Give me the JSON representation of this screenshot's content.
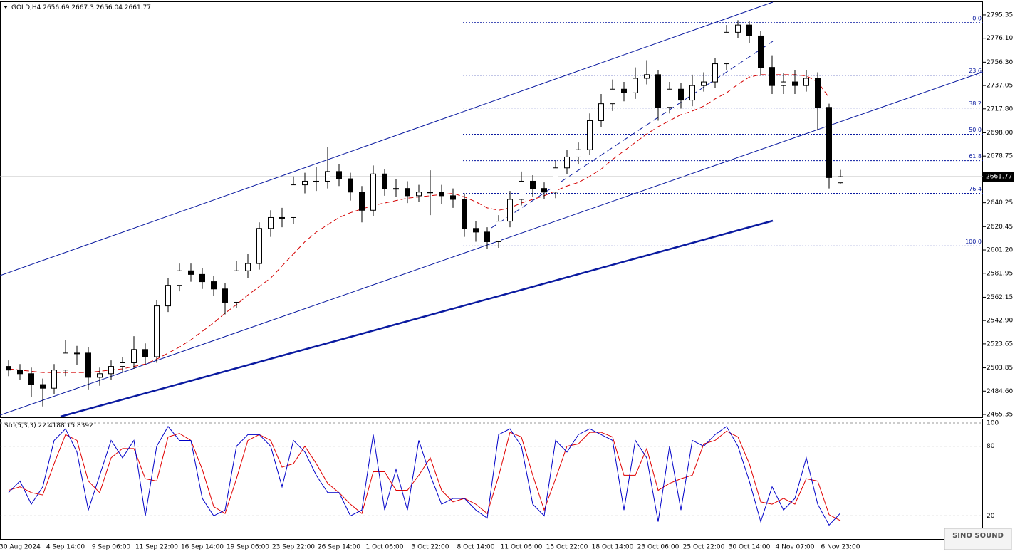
{
  "chart_data": [
    {
      "type": "candlestick",
      "symbol": "GOLD,H4",
      "categories": [
        null,
        "30 Aug 2024",
        null,
        null,
        null,
        "4 Sep 14:00",
        null,
        null,
        null,
        "9 Sep 06:00",
        null,
        null,
        null,
        "11 Sep 22:00",
        null,
        null,
        null,
        "16 Sep 14:00",
        null,
        null,
        null,
        "19 Sep 06:00",
        null,
        null,
        null,
        "23 Sep 22:00",
        null,
        null,
        null,
        "26 Sep 14:00",
        null,
        null,
        null,
        "1 Oct 06:00",
        null,
        null,
        null,
        "3 Oct 22:00",
        null,
        null,
        null,
        "8 Oct 14:00",
        null,
        null,
        null,
        "11 Oct 06:00",
        null,
        null,
        null,
        "15 Oct 22:00",
        null,
        null,
        null,
        "18 Oct 14:00",
        null,
        null,
        null,
        "23 Oct 06:00",
        null,
        null,
        null,
        "25 Oct 22:00",
        null,
        null,
        null,
        "30 Oct 14:00",
        null,
        null,
        null,
        "4 Nov 07:00",
        null,
        null,
        null,
        "6 Nov 23:00"
      ],
      "open": [
        2505,
        2502,
        2499,
        2490,
        2487,
        2502,
        2516,
        2516,
        2496,
        2499,
        2505,
        2508,
        2519,
        2513,
        2555,
        2572,
        2584,
        2581,
        2575,
        2569,
        2558,
        2584,
        2590,
        2619,
        2628,
        2628,
        2655,
        2658,
        2658,
        2666,
        2660,
        2649,
        2634,
        2664,
        2652,
        2652,
        2646,
        2649,
        2649,
        2646,
        2643,
        2619,
        2616,
        2608,
        2625,
        2643,
        2658,
        2652,
        2649,
        2669,
        2678,
        2684,
        2708,
        2722,
        2734,
        2731,
        2743,
        2746,
        2719,
        2734,
        2725,
        2737,
        2740,
        2755,
        2781,
        2787,
        2778,
        2752,
        2737,
        2740,
        2737,
        2743,
        2719,
        2656.69
      ],
      "high": [
        2510,
        2507,
        2504,
        2495,
        2507,
        2527,
        2522,
        2521,
        2504,
        2510,
        2513,
        2530,
        2524,
        2560,
        2578,
        2590,
        2590,
        2586,
        2580,
        2574,
        2592,
        2598,
        2624,
        2634,
        2636,
        2662,
        2665,
        2670,
        2686,
        2672,
        2665,
        2654,
        2671,
        2668,
        2660,
        2658,
        2655,
        2667,
        2655,
        2652,
        2648,
        2625,
        2620,
        2630,
        2650,
        2666,
        2663,
        2657,
        2675,
        2684,
        2690,
        2714,
        2730,
        2742,
        2740,
        2752,
        2758,
        2750,
        2740,
        2739,
        2746,
        2748,
        2760,
        2787,
        2791,
        2790,
        2782,
        2762,
        2747,
        2750,
        2750,
        2748,
        2722,
        2667.3
      ],
      "low": [
        2497,
        2494,
        2480,
        2472,
        2482,
        2497,
        2506,
        2486,
        2489,
        2494,
        2500,
        2503,
        2507,
        2508,
        2550,
        2567,
        2575,
        2569,
        2563,
        2548,
        2553,
        2578,
        2585,
        2612,
        2620,
        2623,
        2648,
        2650,
        2652,
        2654,
        2642,
        2624,
        2629,
        2646,
        2645,
        2640,
        2641,
        2630,
        2639,
        2636,
        2612,
        2608,
        2602,
        2603,
        2620,
        2638,
        2645,
        2643,
        2644,
        2664,
        2672,
        2680,
        2703,
        2716,
        2724,
        2726,
        2738,
        2708,
        2714,
        2718,
        2720,
        2732,
        2735,
        2750,
        2776,
        2772,
        2745,
        2730,
        2730,
        2730,
        2732,
        2700,
        2652,
        2656.04
      ],
      "close": [
        2502,
        2499,
        2490,
        2487,
        2502,
        2516,
        2516,
        2496,
        2499,
        2505,
        2508,
        2519,
        2513,
        2555,
        2572,
        2584,
        2581,
        2575,
        2569,
        2558,
        2584,
        2590,
        2619,
        2628,
        2628,
        2655,
        2658,
        2658,
        2666,
        2660,
        2649,
        2634,
        2664,
        2652,
        2652,
        2646,
        2649,
        2649,
        2646,
        2643,
        2619,
        2616,
        2608,
        2625,
        2643,
        2658,
        2652,
        2649,
        2669,
        2678,
        2684,
        2708,
        2722,
        2734,
        2731,
        2743,
        2746,
        2719,
        2734,
        2725,
        2737,
        2740,
        2755,
        2781,
        2787,
        2778,
        2752,
        2737,
        2740,
        2737,
        2743,
        2719,
        2661,
        2661.77
      ],
      "ma": {
        "color": "#d40000",
        "values": [
          2503,
          2502,
          2501,
          2500,
          2500,
          2500,
          2500,
          2500,
          2501,
          2502,
          2503,
          2505,
          2507,
          2511,
          2516,
          2521,
          2527,
          2534,
          2541,
          2549,
          2556,
          2564,
          2571,
          2578,
          2588,
          2598,
          2608,
          2616,
          2622,
          2628,
          2632,
          2635,
          2638,
          2640,
          2642,
          2644,
          2645,
          2646,
          2647,
          2648,
          2645,
          2641,
          2636,
          2634,
          2636,
          2640,
          2643,
          2646,
          2650,
          2654,
          2657,
          2662,
          2668,
          2676,
          2683,
          2690,
          2697,
          2703,
          2708,
          2713,
          2716,
          2720,
          2726,
          2731,
          2738,
          2744,
          2746,
          2746,
          2746,
          2746,
          2745,
          2740,
          2727,
          null
        ]
      },
      "fib_levels": [
        {
          "value": 2789,
          "label": "0.0"
        },
        {
          "value": 2745.5,
          "label": "23.6"
        },
        {
          "value": 2718.5,
          "label": "38.2"
        },
        {
          "value": 2696.8,
          "label": "50.0"
        },
        {
          "value": 2675,
          "label": "61.8"
        },
        {
          "value": 2648,
          "label": "76.4"
        },
        {
          "value": 2604.5,
          "label": "100.0"
        }
      ],
      "ylim": [
        2463,
        2806.5
      ],
      "yticks": [
        2795.35,
        {
          "value": 2776.1,
          "label": "2776.10"
        },
        {
          "value": 2756.3,
          "label": "2756.30"
        },
        2737.05,
        {
          "value": 2717.8,
          "label": "2717.80"
        },
        {
          "value": 2698,
          "label": "2698.00"
        },
        2678.75,
        2640.25,
        2620.45,
        {
          "value": 2601.2,
          "label": "2601.20"
        },
        2581.95,
        2562.15,
        {
          "value": 2542.9,
          "label": "2542.90"
        },
        2523.65,
        2503.85,
        {
          "value": 2484.6,
          "label": "2484.60"
        },
        2465.35
      ]
    },
    {
      "type": "line",
      "title": "Sto(5,3,3)",
      "series": [
        {
          "color": "#0000c8",
          "values": [
            40,
            50,
            30,
            45,
            85,
            95,
            75,
            25,
            55,
            85,
            70,
            85,
            20,
            80,
            97,
            85,
            85,
            35,
            20,
            25,
            80,
            90,
            90,
            80,
            45,
            85,
            75,
            55,
            40,
            40,
            20,
            25,
            90,
            25,
            60,
            25,
            85,
            55,
            30,
            35,
            35,
            25,
            18,
            90,
            95,
            80,
            30,
            20,
            85,
            75,
            90,
            95,
            90,
            85,
            25,
            85,
            70,
            15,
            80,
            25,
            85,
            80,
            90,
            97,
            80,
            50,
            15,
            45,
            25,
            35,
            70,
            30,
            12,
            22.4188
          ]
        },
        {
          "color": "#e00000",
          "values": [
            42,
            45,
            40,
            38,
            65,
            90,
            85,
            50,
            40,
            70,
            78,
            78,
            52,
            50,
            88,
            91,
            85,
            60,
            28,
            22,
            52,
            85,
            90,
            85,
            62,
            65,
            80,
            65,
            48,
            40,
            30,
            22,
            58,
            58,
            42,
            42,
            55,
            70,
            42,
            32,
            35,
            30,
            22,
            54,
            92,
            88,
            55,
            25,
            52,
            80,
            82,
            92,
            92,
            88,
            55,
            55,
            78,
            42,
            48,
            52,
            55,
            82,
            85,
            93,
            88,
            65,
            32,
            30,
            35,
            30,
            52,
            50,
            21,
            15.8392
          ]
        }
      ],
      "ylim": [
        0,
        103.7
      ],
      "yticks": [
        20,
        80,
        100
      ]
    }
  ],
  "watermark": "SINO SOUND"
}
